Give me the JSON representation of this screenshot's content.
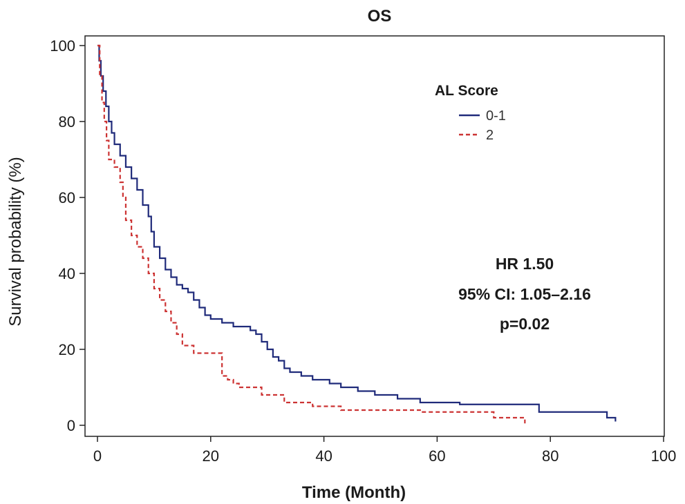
{
  "chart_data": {
    "type": "line",
    "title": "OS",
    "xlabel": "Time (Month)",
    "ylabel": "Survival probability (%)",
    "xlim": [
      0,
      100
    ],
    "ylim": [
      0,
      100
    ],
    "x_ticks": [
      0,
      20,
      40,
      60,
      80,
      100
    ],
    "y_ticks": [
      0,
      20,
      40,
      60,
      80,
      100
    ],
    "grid": false,
    "legend": {
      "title": "AL Score",
      "placement": "top-right"
    },
    "series": [
      {
        "name": "0-1",
        "color": "#1f2a7a",
        "line_style": "solid",
        "step": true,
        "points": [
          [
            0,
            100
          ],
          [
            0.3,
            96
          ],
          [
            0.6,
            92
          ],
          [
            1,
            88
          ],
          [
            1.5,
            84
          ],
          [
            2,
            80
          ],
          [
            2.5,
            77
          ],
          [
            3,
            74
          ],
          [
            4,
            71
          ],
          [
            5,
            68
          ],
          [
            6,
            65
          ],
          [
            7,
            62
          ],
          [
            8,
            58
          ],
          [
            9,
            55
          ],
          [
            9.5,
            51
          ],
          [
            10,
            47
          ],
          [
            11,
            44
          ],
          [
            12,
            41
          ],
          [
            13,
            39
          ],
          [
            14,
            37
          ],
          [
            15,
            36
          ],
          [
            16,
            35
          ],
          [
            17,
            33
          ],
          [
            18,
            31
          ],
          [
            19,
            29
          ],
          [
            20,
            28
          ],
          [
            22,
            27
          ],
          [
            24,
            26
          ],
          [
            27,
            25
          ],
          [
            28,
            24
          ],
          [
            29,
            22
          ],
          [
            30,
            20
          ],
          [
            31,
            18
          ],
          [
            32,
            17
          ],
          [
            33,
            15
          ],
          [
            34,
            14
          ],
          [
            36,
            13
          ],
          [
            38,
            12
          ],
          [
            41,
            11
          ],
          [
            43,
            10
          ],
          [
            46,
            9
          ],
          [
            49,
            8
          ],
          [
            53,
            7
          ],
          [
            57,
            6
          ],
          [
            64,
            5.5
          ],
          [
            78,
            3.5
          ],
          [
            90,
            2
          ],
          [
            91.5,
            1
          ]
        ]
      },
      {
        "name": "2",
        "color": "#cc3333",
        "line_style": "dashed",
        "step": true,
        "points": [
          [
            0,
            100
          ],
          [
            0.4,
            92
          ],
          [
            0.8,
            85
          ],
          [
            1.2,
            80
          ],
          [
            1.6,
            75
          ],
          [
            2,
            70
          ],
          [
            3,
            68
          ],
          [
            4,
            64
          ],
          [
            4.5,
            60
          ],
          [
            5,
            54
          ],
          [
            6,
            50
          ],
          [
            7,
            47
          ],
          [
            8,
            44
          ],
          [
            9,
            40
          ],
          [
            10,
            36
          ],
          [
            11,
            33
          ],
          [
            12,
            30
          ],
          [
            13,
            27
          ],
          [
            14,
            24
          ],
          [
            15,
            21
          ],
          [
            17,
            19
          ],
          [
            22,
            13
          ],
          [
            23,
            12
          ],
          [
            24,
            11
          ],
          [
            25,
            10
          ],
          [
            29,
            8
          ],
          [
            33,
            6
          ],
          [
            38,
            5
          ],
          [
            43,
            4
          ],
          [
            57,
            3.5
          ],
          [
            70,
            2
          ],
          [
            75.5,
            0.5
          ]
        ]
      }
    ],
    "annotations": [
      "HR 1.50",
      "95% CI: 1.05–2.16",
      "p=0.02"
    ]
  }
}
